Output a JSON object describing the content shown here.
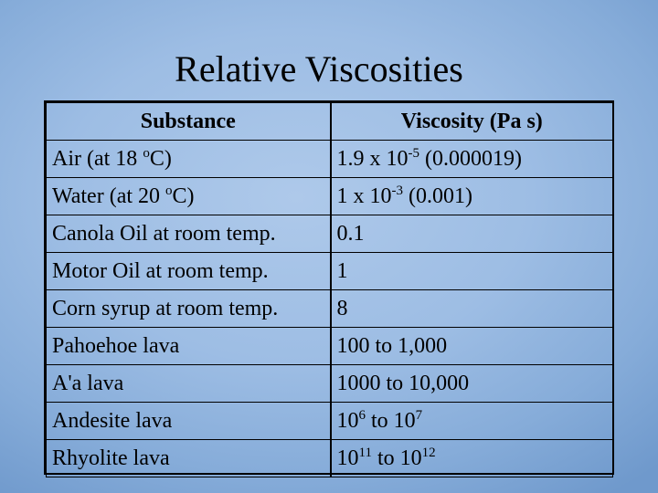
{
  "title": "Relative Viscosities",
  "table": {
    "headers": [
      "Substance",
      "Viscosity (Pa s)"
    ],
    "rows": [
      {
        "substance": {
          "pre": "Air (at 18 ",
          "sup": "o",
          "post": "C)"
        },
        "viscosity": {
          "pre": "1.9 x 10",
          "sup": "-5",
          "post": " (0.000019)"
        }
      },
      {
        "substance": {
          "pre": "Water (at 20 ",
          "sup": "o",
          "post": "C)"
        },
        "viscosity": {
          "pre": "1 x 10",
          "sup": "-3",
          "post": " (0.001)"
        }
      },
      {
        "substance": {
          "pre": "Canola Oil at room temp."
        },
        "viscosity": {
          "pre": "0.1"
        }
      },
      {
        "substance": {
          "pre": "Motor Oil at room temp."
        },
        "viscosity": {
          "pre": "1"
        }
      },
      {
        "substance": {
          "pre": "Corn syrup at room temp."
        },
        "viscosity": {
          "pre": "8"
        }
      },
      {
        "substance": {
          "pre": "Pahoehoe lava"
        },
        "viscosity": {
          "pre": "100 to 1,000"
        }
      },
      {
        "substance": {
          "pre": "A'a lava"
        },
        "viscosity": {
          "pre": "1000 to 10,000"
        }
      },
      {
        "substance": {
          "pre": "Andesite lava"
        },
        "viscosity": {
          "pre": "10",
          "sup": "6",
          "post": " to 10",
          "sup2": "7"
        }
      },
      {
        "substance": {
          "pre": "Rhyolite lava"
        },
        "viscosity": {
          "pre": "10",
          "sup": "11",
          "post": " to 10",
          "sup2": "12"
        }
      }
    ]
  }
}
